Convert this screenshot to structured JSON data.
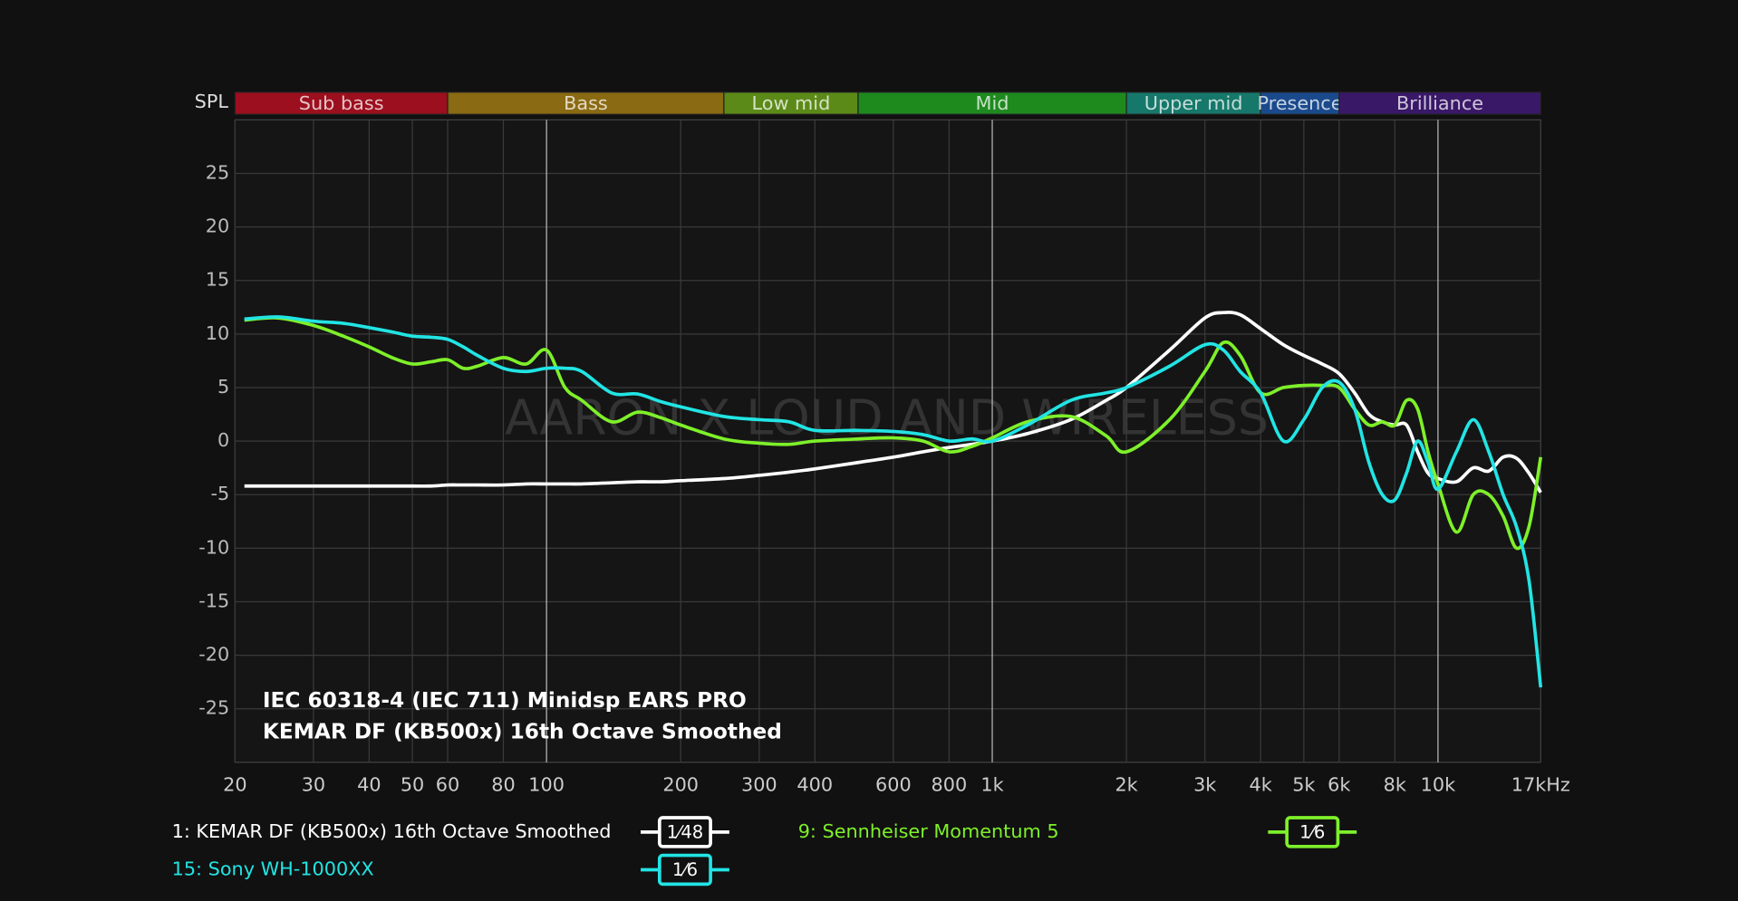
{
  "chart_data": {
    "type": "line",
    "y_label": "SPL",
    "annotations": [
      "IEC 60318-4 (IEC 711) Minidsp EARS PRO",
      "KEMAR DF (KB500x) 16th Octave Smoothed"
    ],
    "watermark": "AARON X LOUD AND WIRELESS",
    "log_x": true,
    "grid": true,
    "xlim": [
      20,
      17000
    ],
    "ylim": [
      -30,
      30
    ],
    "xticks": [
      20,
      30,
      40,
      50,
      60,
      80,
      100,
      200,
      300,
      400,
      600,
      800,
      {
        "value": 1000,
        "label": "1k"
      },
      {
        "value": 2000,
        "label": "2k"
      },
      {
        "value": 3000,
        "label": "3k"
      },
      {
        "value": 4000,
        "label": "4k"
      },
      {
        "value": 5000,
        "label": "5k"
      },
      {
        "value": 6000,
        "label": "6k"
      },
      {
        "value": 8000,
        "label": "8k"
      },
      {
        "value": 10000,
        "label": "10k"
      },
      {
        "value": 17000,
        "label": "17kHz"
      }
    ],
    "yticks": [
      25,
      20,
      15,
      10,
      5,
      0,
      -5,
      -10,
      -15,
      -20,
      -25
    ],
    "bands": [
      {
        "name": "Sub bass",
        "color": "#9c0f1e",
        "from": 20,
        "to": 60
      },
      {
        "name": "Bass",
        "color": "#8a6a12",
        "from": 60,
        "to": 250
      },
      {
        "name": "Low mid",
        "color": "#5c8a18",
        "from": 250,
        "to": 500
      },
      {
        "name": "Mid",
        "color": "#1e8a1e",
        "from": 500,
        "to": 2000
      },
      {
        "name": "Upper mid",
        "color": "#16786a",
        "from": 2000,
        "to": 4000
      },
      {
        "name": "Presence",
        "color": "#1a4a8c",
        "from": 4000,
        "to": 6000
      },
      {
        "name": "Brilliance",
        "color": "#3a1868",
        "from": 6000,
        "to": 17000
      }
    ],
    "x": [
      21,
      25,
      30,
      35,
      40,
      45,
      50,
      55,
      60,
      65,
      70,
      80,
      90,
      100,
      110,
      120,
      140,
      160,
      180,
      200,
      250,
      300,
      350,
      400,
      500,
      600,
      700,
      800,
      900,
      1000,
      1200,
      1500,
      1800,
      2000,
      2500,
      3000,
      3300,
      3600,
      4000,
      4500,
      5000,
      5500,
      6000,
      6500,
      7000,
      7500,
      8000,
      8500,
      9000,
      9500,
      10000,
      11000,
      12000,
      13000,
      14000,
      15000,
      16000,
      17000
    ],
    "series": [
      {
        "name": "1: KEMAR DF (KB500x) 16th Octave Smoothed",
        "smoothing": "1⁄48",
        "color": "#ffffff",
        "values": [
          -4.2,
          -4.2,
          -4.2,
          -4.2,
          -4.2,
          -4.2,
          -4.2,
          -4.2,
          -4.1,
          -4.1,
          -4.1,
          -4.1,
          -4.0,
          -4.0,
          -4.0,
          -4.0,
          -3.9,
          -3.8,
          -3.8,
          -3.7,
          -3.5,
          -3.2,
          -2.9,
          -2.6,
          -2.0,
          -1.5,
          -1.0,
          -0.6,
          -0.3,
          0,
          0.7,
          2,
          3.8,
          5,
          8.5,
          11.5,
          12,
          11.8,
          10.5,
          9,
          8,
          7.2,
          6.3,
          4.5,
          2.5,
          1.8,
          1.5,
          1.5,
          -1,
          -3,
          -3.5,
          -3.8,
          -2.5,
          -2.8,
          -1.5,
          -1.6,
          -3,
          -4.8
        ]
      },
      {
        "name": "9: Sennheiser Momentum 5",
        "smoothing": "1⁄6",
        "color": "#7ef02a",
        "values": [
          11.3,
          11.5,
          10.8,
          9.8,
          8.8,
          7.8,
          7.2,
          7.4,
          7.6,
          6.8,
          7,
          7.8,
          7.2,
          8.5,
          5,
          3.8,
          1.8,
          2.7,
          2.2,
          1.5,
          0.2,
          -0.2,
          -0.3,
          0,
          0.2,
          0.3,
          0,
          -1,
          -0.5,
          0.3,
          1.8,
          2.3,
          0.5,
          -1,
          2,
          6.5,
          9.2,
          8,
          4.5,
          5,
          5.2,
          5.2,
          5,
          3,
          1.5,
          1.8,
          1.5,
          3.8,
          3,
          -1,
          -4,
          -8.5,
          -5,
          -5,
          -7,
          -10,
          -8,
          -1.5
        ]
      },
      {
        "name": "15: Sony WH-1000XX",
        "smoothing": "1⁄6",
        "color": "#22e4e4",
        "values": [
          11.4,
          11.6,
          11.2,
          11,
          10.6,
          10.2,
          9.8,
          9.7,
          9.5,
          8.8,
          8,
          6.8,
          6.5,
          6.8,
          6.8,
          6.5,
          4.5,
          4.4,
          3.7,
          3.2,
          2.3,
          2,
          1.8,
          1,
          1,
          0.9,
          0.6,
          0,
          0.2,
          0,
          1.5,
          3.8,
          4.5,
          5,
          7,
          9,
          8.5,
          6.5,
          4.5,
          0,
          2,
          5,
          5.5,
          3,
          -2,
          -5,
          -5.5,
          -3,
          0,
          -2,
          -4.5,
          -1,
          2,
          -1,
          -5,
          -8,
          -13,
          -23
        ]
      }
    ]
  }
}
